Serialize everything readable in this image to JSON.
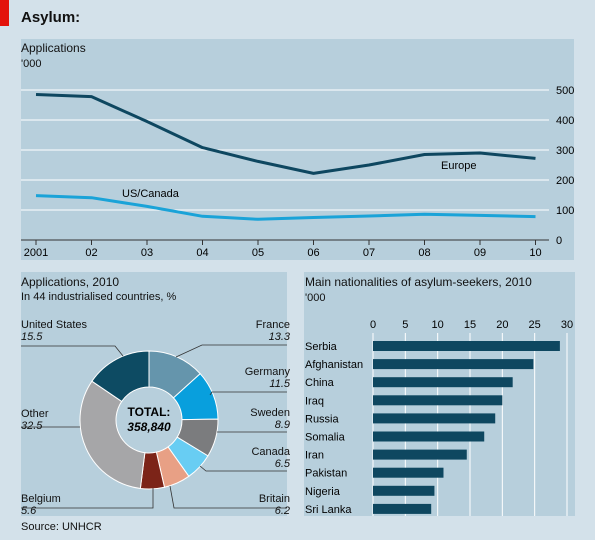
{
  "header": {
    "title": "Asylum:"
  },
  "source": "Source: UNHCR",
  "chart_data": [
    {
      "type": "line",
      "title": "Applications",
      "ylabel": "'000",
      "x": [
        "2001",
        "02",
        "03",
        "04",
        "05",
        "06",
        "07",
        "08",
        "09",
        "10"
      ],
      "ylim": [
        0,
        500
      ],
      "yticks": [
        "0",
        "100",
        "200",
        "300",
        "400",
        "500"
      ],
      "grid": true,
      "series": [
        {
          "name": "Europe",
          "color": "#0e4760",
          "values": [
            485,
            478,
            395,
            308,
            262,
            222,
            250,
            285,
            290,
            272
          ]
        },
        {
          "name": "US/Canada",
          "color": "#1aa3d8",
          "values": [
            148,
            141,
            112,
            79,
            69,
            75,
            80,
            86,
            82,
            78
          ]
        }
      ]
    },
    {
      "type": "pie",
      "title": "Applications, 2010",
      "subtitle": "In 44 industrialised countries, %",
      "center_label_1": "TOTAL:",
      "center_label_2": "358,840",
      "slices": [
        {
          "label": "France",
          "value": 13.3,
          "value_text": "13.3",
          "color": "#6595ac"
        },
        {
          "label": "Germany",
          "value": 11.5,
          "value_text": "11.5",
          "color": "#089fdd"
        },
        {
          "label": "Sweden",
          "value": 8.9,
          "value_text": "8.9",
          "color": "#7b7c7e"
        },
        {
          "label": "Canada",
          "value": 6.5,
          "value_text": "6.5",
          "color": "#68cdf3"
        },
        {
          "label": "Britain",
          "value": 6.2,
          "value_text": "6.2",
          "color": "#e8a085"
        },
        {
          "label": "Belgium",
          "value": 5.6,
          "value_text": "5.6",
          "color": "#7c2418"
        },
        {
          "label": "Other",
          "value": 32.5,
          "value_text": "32.5",
          "color": "#a6a6a8"
        },
        {
          "label": "United States",
          "value": 15.5,
          "value_text": "15.5",
          "color": "#0d4b63"
        }
      ]
    },
    {
      "type": "bar",
      "orientation": "horizontal",
      "title": "Main nationalities of asylum-seekers, 2010",
      "ylabel": "'000",
      "xlim": [
        0,
        30
      ],
      "xticks": [
        "0",
        "5",
        "10",
        "15",
        "20",
        "25",
        "30"
      ],
      "color": "#0e4760",
      "categories": [
        "Serbia",
        "Afghanistan",
        "China",
        "Iraq",
        "Russia",
        "Somalia",
        "Iran",
        "Pakistan",
        "Nigeria",
        "Sri Lanka"
      ],
      "values": [
        28.9,
        24.8,
        21.6,
        20.0,
        18.9,
        17.2,
        14.5,
        10.9,
        9.5,
        9.0
      ]
    }
  ]
}
